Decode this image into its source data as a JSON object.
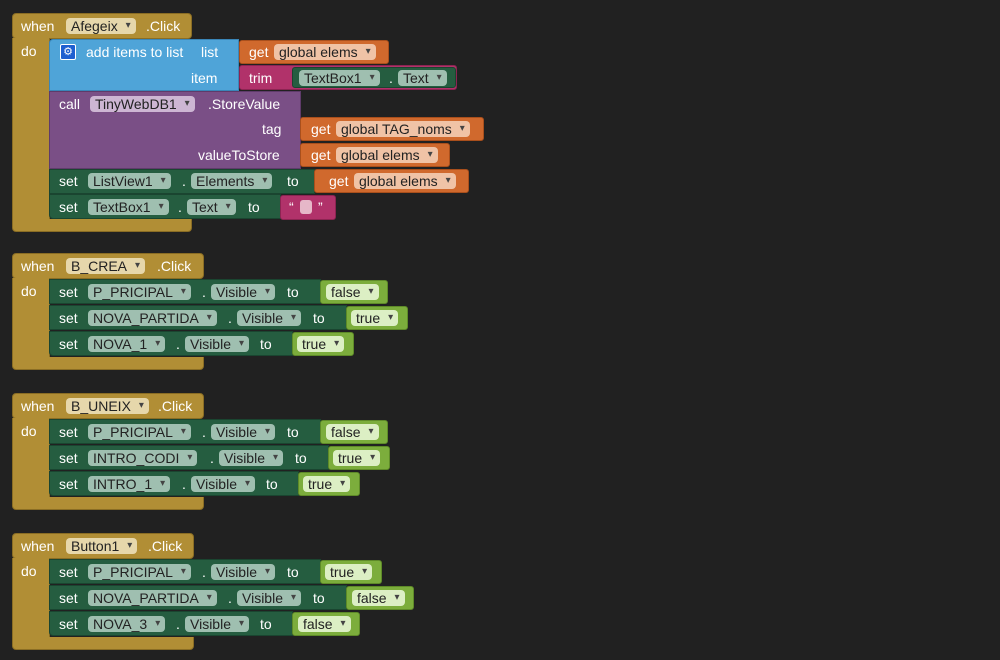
{
  "kw": {
    "when": "when",
    "do": "do",
    "click": ".Click",
    "set": "set",
    "to": "to",
    "get": "get",
    "call": "call",
    "dot": ".",
    "trim": "trim",
    "add_items": "add items to list",
    "list": "list",
    "item": "item",
    "store_value": ".StoreValue",
    "tag": "tag",
    "value_to_store": "valueToStore",
    "quote_open": "“",
    "quote_close": "”"
  },
  "events": [
    {
      "component": "Afegeix",
      "add_items": {
        "list_var": "global elems",
        "trim_component": "TextBox1",
        "trim_prop": "Text"
      },
      "call": {
        "component": "TinyWebDB1",
        "tag_var": "global TAG_noms",
        "value_var": "global elems"
      },
      "set1": {
        "component": "ListView1",
        "prop": "Elements",
        "var": "global elems"
      },
      "set2": {
        "component": "TextBox1",
        "prop": "Text"
      }
    },
    {
      "component": "B_CREA",
      "sets": [
        {
          "component": "P_PRICIPAL",
          "prop": "Visible",
          "value": "false"
        },
        {
          "component": "NOVA_PARTIDA",
          "prop": "Visible",
          "value": "true"
        },
        {
          "component": "NOVA_1",
          "prop": "Visible",
          "value": "true"
        }
      ]
    },
    {
      "component": "B_UNEIX",
      "sets": [
        {
          "component": "P_PRICIPAL",
          "prop": "Visible",
          "value": "false"
        },
        {
          "component": "INTRO_CODI",
          "prop": "Visible",
          "value": "true"
        },
        {
          "component": "INTRO_1",
          "prop": "Visible",
          "value": "true"
        }
      ]
    },
    {
      "component": "Button1",
      "sets": [
        {
          "component": "P_PRICIPAL",
          "prop": "Visible",
          "value": "true"
        },
        {
          "component": "NOVA_PARTIDA",
          "prop": "Visible",
          "value": "false"
        },
        {
          "component": "NOVA_3",
          "prop": "Visible",
          "value": "false"
        }
      ]
    }
  ]
}
